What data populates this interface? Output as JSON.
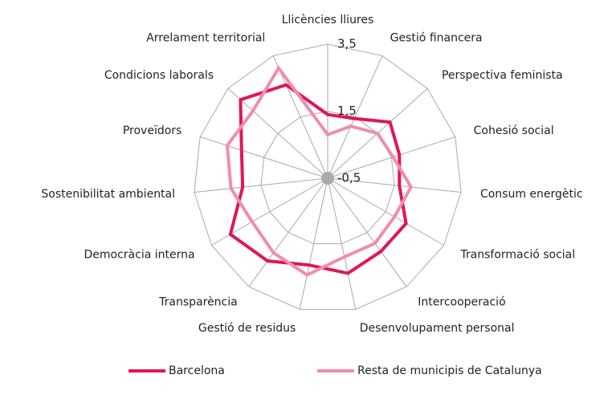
{
  "chart_data": {
    "type": "radar",
    "categories": [
      "Llicències lliures",
      "Gestió financera",
      "Perspectiva feminista",
      "Cohesió social",
      "Consum energètic",
      "Transformació social",
      "Intercooperació",
      "Desenvolupament personal",
      "Gestió de residus",
      "Transparència",
      "Democràcia interna",
      "Sostenibilitat ambiental",
      "Proveïdors",
      "Condicions laborals",
      "Arrelament territorial"
    ],
    "series": [
      {
        "name": "Barcelona",
        "color": "#e0155a",
        "values": [
          1.4,
          1.45,
          2.0,
          1.75,
          1.65,
          2.2,
          2.2,
          2.4,
          2.15,
          2.55,
          2.85,
          2.05,
          2.2,
          3.0,
          2.55
        ]
      },
      {
        "name": "Resta de municipis de Catalunya",
        "color": "#f08cb0",
        "values": [
          0.8,
          1.2,
          1.5,
          1.55,
          2.0,
          1.8,
          1.9,
          1.9,
          2.45,
          2.25,
          2.1,
          2.4,
          2.65,
          2.5,
          3.1
        ]
      }
    ],
    "ylim": [
      -0.5,
      3.5
    ],
    "yticks": [
      {
        "value": -0.5,
        "label": "-0,5"
      },
      {
        "value": 1.5,
        "label": "1,5"
      },
      {
        "value": 3.5,
        "label": "3,5"
      }
    ],
    "grid": true,
    "legend": "bottom"
  }
}
